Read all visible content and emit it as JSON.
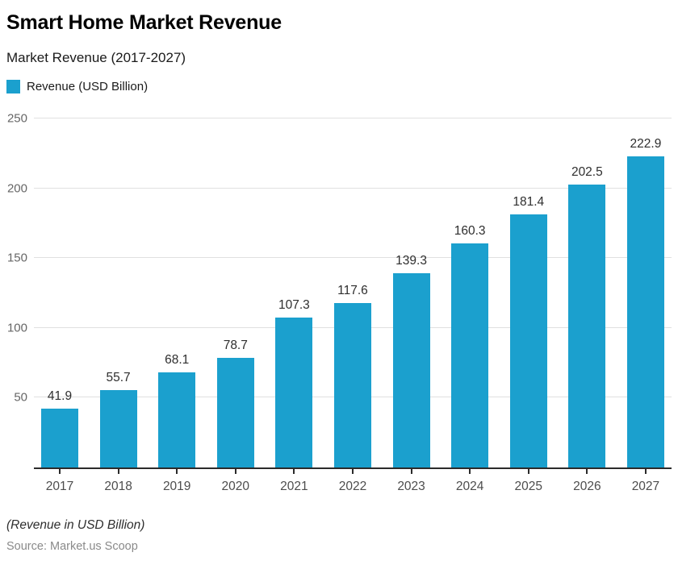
{
  "header": {
    "title": "Smart Home Market Revenue",
    "subtitle": "Market Revenue (2017-2027)"
  },
  "legend": {
    "label": "Revenue (USD Billion)",
    "swatch_color": "#1BA0CE"
  },
  "chart_data": {
    "type": "bar",
    "title": "Smart Home Market Revenue",
    "subtitle": "Market Revenue (2017-2027)",
    "series_name": "Revenue (USD Billion)",
    "categories": [
      "2017",
      "2018",
      "2019",
      "2020",
      "2021",
      "2022",
      "2023",
      "2024",
      "2025",
      "2026",
      "2027"
    ],
    "values": [
      41.9,
      55.7,
      68.1,
      78.7,
      107.3,
      117.6,
      139.3,
      160.3,
      181.4,
      202.5,
      222.9
    ],
    "xlabel": "",
    "ylabel": "",
    "ylim": [
      0,
      250
    ],
    "yticks": [
      50,
      100,
      150,
      200,
      250
    ],
    "grid": "horizontal",
    "bar_color": "#1BA0CE",
    "gridline_color": "#e0e0e0",
    "value_labels": true,
    "legend_position": "top-left"
  },
  "footer": {
    "note": "(Revenue in USD Billion)",
    "source": "Source: Market.us Scoop"
  }
}
